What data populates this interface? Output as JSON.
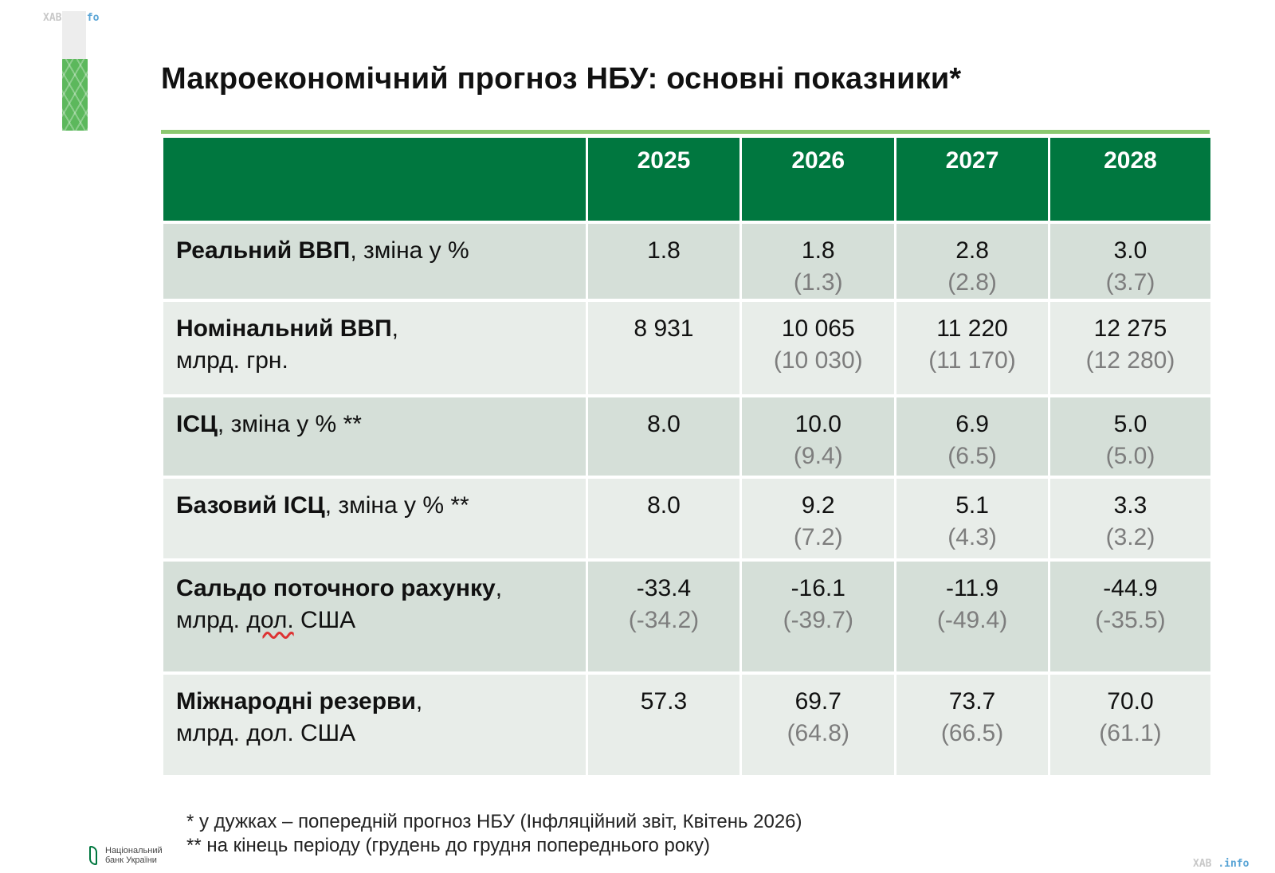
{
  "watermark": {
    "brand": "ХАВ",
    "domain": ".info"
  },
  "title": "Макроекономічний прогноз НБУ: основні показники*",
  "table": {
    "years": [
      "2025",
      "2026",
      "2027",
      "2028"
    ],
    "rows": [
      {
        "label_bold": "Реальний ВВП",
        "label_rest": ", зміна у %",
        "label_line2": "",
        "values": [
          {
            "cur": "1.8",
            "prev": ""
          },
          {
            "cur": "1.8",
            "prev": "(1.3)"
          },
          {
            "cur": "2.8",
            "prev": "(2.8)"
          },
          {
            "cur": "3.0",
            "prev": "(3.7)"
          }
        ]
      },
      {
        "label_bold": "Номінальний ВВП",
        "label_rest": ",",
        "label_line2": "млрд. грн.",
        "values": [
          {
            "cur": "8 931",
            "prev": ""
          },
          {
            "cur": "10 065",
            "prev": "(10 030)"
          },
          {
            "cur": "11 220",
            "prev": "(11 170)"
          },
          {
            "cur": "12 275",
            "prev": "(12 280)"
          }
        ]
      },
      {
        "label_bold": "ІСЦ",
        "label_rest": ", зміна у % **",
        "label_line2": "",
        "values": [
          {
            "cur": "8.0",
            "prev": ""
          },
          {
            "cur": "10.0",
            "prev": "(9.4)"
          },
          {
            "cur": "6.9",
            "prev": "(6.5)"
          },
          {
            "cur": "5.0",
            "prev": "(5.0)"
          }
        ]
      },
      {
        "label_bold": "Базовий ІСЦ",
        "label_rest": ", зміна у % **",
        "label_line2": "",
        "values": [
          {
            "cur": "8.0",
            "prev": ""
          },
          {
            "cur": "9.2",
            "prev": "(7.2)"
          },
          {
            "cur": "5.1",
            "prev": "(4.3)"
          },
          {
            "cur": "3.3",
            "prev": "(3.2)"
          }
        ]
      },
      {
        "label_bold": "Сальдо поточного рахунку",
        "label_rest": ",",
        "label_line2": "млрд. дол. США",
        "values": [
          {
            "cur": "-33.4",
            "prev": "(-34.2)"
          },
          {
            "cur": "-16.1",
            "prev": "(-39.7)"
          },
          {
            "cur": "-11.9",
            "prev": "(-49.4)"
          },
          {
            "cur": "-44.9",
            "prev": "(-35.5)"
          }
        ]
      },
      {
        "label_bold": "Міжнародні резерви",
        "label_rest": ",",
        "label_line2": "млрд. дол. США",
        "values": [
          {
            "cur": "57.3",
            "prev": ""
          },
          {
            "cur": "69.7",
            "prev": "(64.8)"
          },
          {
            "cur": "73.7",
            "prev": "(66.5)"
          },
          {
            "cur": "70.0",
            "prev": "(61.1)"
          }
        ]
      }
    ]
  },
  "footnotes": [
    "* у дужках – попередній прогноз НБУ (Інфляційний звіт, Квітень 2026)",
    "** на кінець періоду (грудень до грудня попереднього року)"
  ],
  "logo": {
    "text": "Національний\nбанк України",
    "icon": "nbu-logo-icon"
  }
}
